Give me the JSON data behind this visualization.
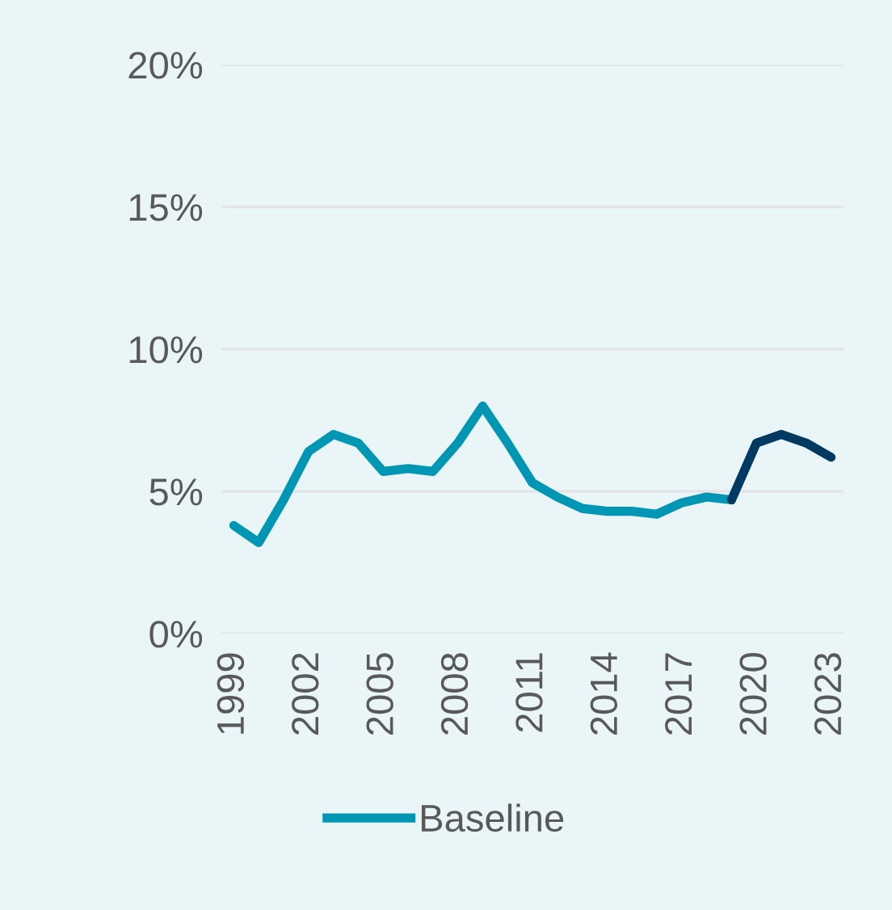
{
  "chart_data": {
    "type": "line",
    "series": [
      {
        "name": "Baseline",
        "color": "#0096b4",
        "x": [
          1999,
          2000,
          2001,
          2002,
          2003,
          2004,
          2005,
          2006,
          2007,
          2008,
          2009,
          2010,
          2011,
          2012,
          2013,
          2014,
          2015,
          2016,
          2017,
          2018,
          2019
        ],
        "values": [
          3.8,
          3.2,
          4.7,
          6.4,
          7.0,
          6.7,
          5.7,
          5.8,
          5.7,
          6.7,
          8.0,
          6.7,
          5.3,
          4.8,
          4.4,
          4.3,
          4.3,
          4.2,
          4.6,
          4.8,
          4.7
        ]
      },
      {
        "color": "#003a63",
        "x": [
          2019,
          2020,
          2021,
          2022,
          2023
        ],
        "values": [
          4.7,
          6.7,
          7.0,
          6.7,
          6.2
        ]
      }
    ],
    "xlim": [
      1998.5,
      2023.5
    ],
    "xticks": [
      1999,
      2002,
      2005,
      2008,
      2011,
      2014,
      2017,
      2020,
      2023
    ],
    "ylim": [
      0,
      20
    ],
    "yticks": [
      {
        "value": 0,
        "label": "0%"
      },
      {
        "value": 5,
        "label": "5%"
      },
      {
        "value": 10,
        "label": "10%"
      },
      {
        "value": 15,
        "label": "15%"
      },
      {
        "value": 20,
        "label": "20%"
      }
    ],
    "grid": "y",
    "legend": "bottom",
    "marker": "none",
    "line_style": "solid"
  }
}
